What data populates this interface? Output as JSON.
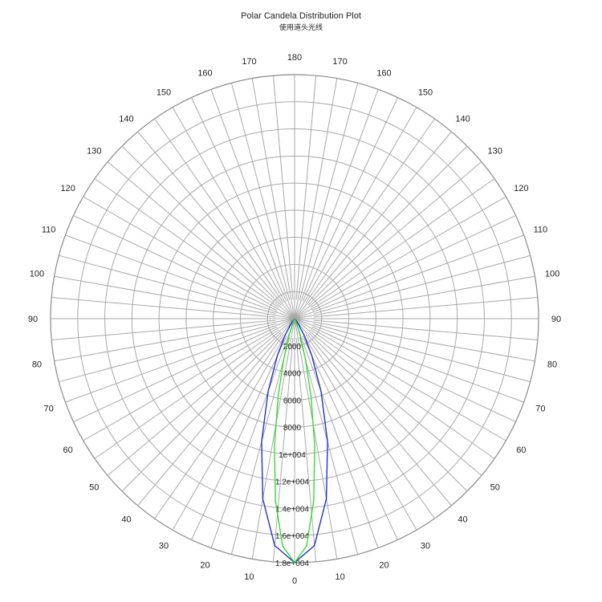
{
  "chart_data": {
    "type": "polar-line",
    "title": "Polar Candela Distribution Plot",
    "subtitle": "使用道头光线",
    "angle_ticks": [
      0,
      10,
      20,
      30,
      40,
      50,
      60,
      70,
      80,
      90,
      100,
      110,
      120,
      130,
      140,
      150,
      160,
      170,
      180
    ],
    "radial_ticks": [
      "2000",
      "4000",
      "6000",
      "8000",
      "1e+004",
      "1.2e+004",
      "1.4e+004",
      "1.6e+004",
      "1.8e+004"
    ],
    "rmax": 18000,
    "grid": true,
    "series": [
      {
        "color": "#2233cc",
        "points": [
          [
            0,
            18000
          ],
          [
            5,
            16800
          ],
          [
            10,
            13500
          ],
          [
            15,
            9400
          ],
          [
            20,
            5700
          ],
          [
            25,
            3000
          ],
          [
            30,
            1400
          ],
          [
            35,
            500
          ],
          [
            40,
            150
          ],
          [
            45,
            0
          ]
        ]
      },
      {
        "color": "#33dd33",
        "points": [
          [
            0,
            18000
          ],
          [
            3,
            16800
          ],
          [
            6,
            13500
          ],
          [
            9,
            9500
          ],
          [
            12,
            5800
          ],
          [
            15,
            3100
          ],
          [
            18,
            1400
          ],
          [
            21,
            500
          ],
          [
            24,
            100
          ],
          [
            27,
            0
          ]
        ]
      }
    ]
  }
}
